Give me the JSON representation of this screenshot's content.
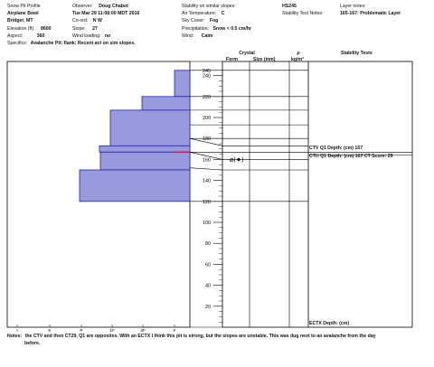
{
  "header": {
    "left": [
      {
        "text": "Snow Pit Profile",
        "bold": false
      },
      {
        "text": "Airplane Bowl",
        "bold": true
      },
      {
        "text": "Bridger, MT",
        "bold": true
      },
      {
        "label": "Elevation (ft):",
        "value": "8600"
      },
      {
        "label": "Aspect:",
        "value": "360"
      }
    ],
    "mid": [
      {
        "label": "Observer:",
        "value": "Doug Chabot"
      },
      {
        "text": "Tue Mar 29 11:08:00 MDT 2016",
        "bold": true
      },
      {
        "label": "Co-ord:",
        "value": "N W"
      },
      {
        "label": "Slope:",
        "value": "27"
      },
      {
        "label": "Wind loading:",
        "value": "no"
      }
    ],
    "right": [
      {
        "label": "Stability on similar slopes:",
        "value": "HS245"
      },
      {
        "label": "Air Temperature:",
        "value": "C"
      },
      {
        "label": "Sky Cover:",
        "value": "Fog"
      },
      {
        "label": "Precipitation:",
        "value": "Snow < 0.5 cm/hr"
      },
      {
        "label": "Wind:",
        "value": "Calm"
      }
    ],
    "far_right": [
      {
        "label": "Layer notes:",
        "value": ""
      },
      {
        "label": "Stability Test Notes:",
        "value": "165-167: Problematic Layer"
      }
    ],
    "specifics_label": "Specifics:",
    "specifics_value": "Avalanche Pit: flank; Recent act on sim slopes."
  },
  "columns": {
    "crystal": "Crystal",
    "form": "Form",
    "size": "Size (mm)",
    "rho": "ρ",
    "rho_unit": "kg/m³",
    "stability": "Stability Tests"
  },
  "colors": {
    "bar_fill": "#9999dd",
    "bar_stroke": "#2222aa",
    "weak_layer": "#cc2255",
    "line": "#000000"
  },
  "chart_data": {
    "type": "bar",
    "orientation": "horizontal",
    "title": "",
    "ylabel": "",
    "xlabel": "",
    "y_ticks": [
      20,
      40,
      60,
      80,
      100,
      120,
      140,
      160,
      180,
      200,
      220,
      240
    ],
    "ylim": [
      0,
      255
    ],
    "x_categories": [
      "I",
      "4F",
      "1F",
      "P",
      "K",
      "I"
    ],
    "x_axis_labels": [
      "I",
      "K",
      "P",
      "1F",
      "4F",
      "F"
    ],
    "hardness_layers": [
      {
        "top": 245,
        "bottom": 220,
        "hardness": "1F"
      },
      {
        "top": 220,
        "bottom": 207,
        "hardness": "4F+"
      },
      {
        "top": 207,
        "bottom": 173,
        "hardness": "P-"
      },
      {
        "top": 173,
        "bottom": 167,
        "hardness": "P+"
      },
      {
        "top": 167,
        "bottom": 150,
        "hardness": "P"
      },
      {
        "top": 150,
        "bottom": 120,
        "hardness": "K-"
      }
    ],
    "weak_layer_height": 167,
    "layer_boundaries": [
      245,
      220,
      207,
      193,
      180,
      173,
      167,
      160,
      150,
      120
    ]
  },
  "symbols": {
    "grain_text": "ø(⚫)"
  },
  "tests": [
    {
      "text": "CTV Q1 Depth: (cm) 167",
      "height": 167
    },
    {
      "text": "CTH Q1 Depth: (cm) 167 CT Score: 29",
      "height": 164
    }
  ],
  "bottom_test": "ECTX  Depth: (cm)",
  "notes_label": "Notes:",
  "notes_line1": "the CTV and then CT29, Q1 are opposites. With an ECTX I think this pit is strong, but the slopes are unstable. This was dug next to an avalanche from the day",
  "notes_line2": "before."
}
